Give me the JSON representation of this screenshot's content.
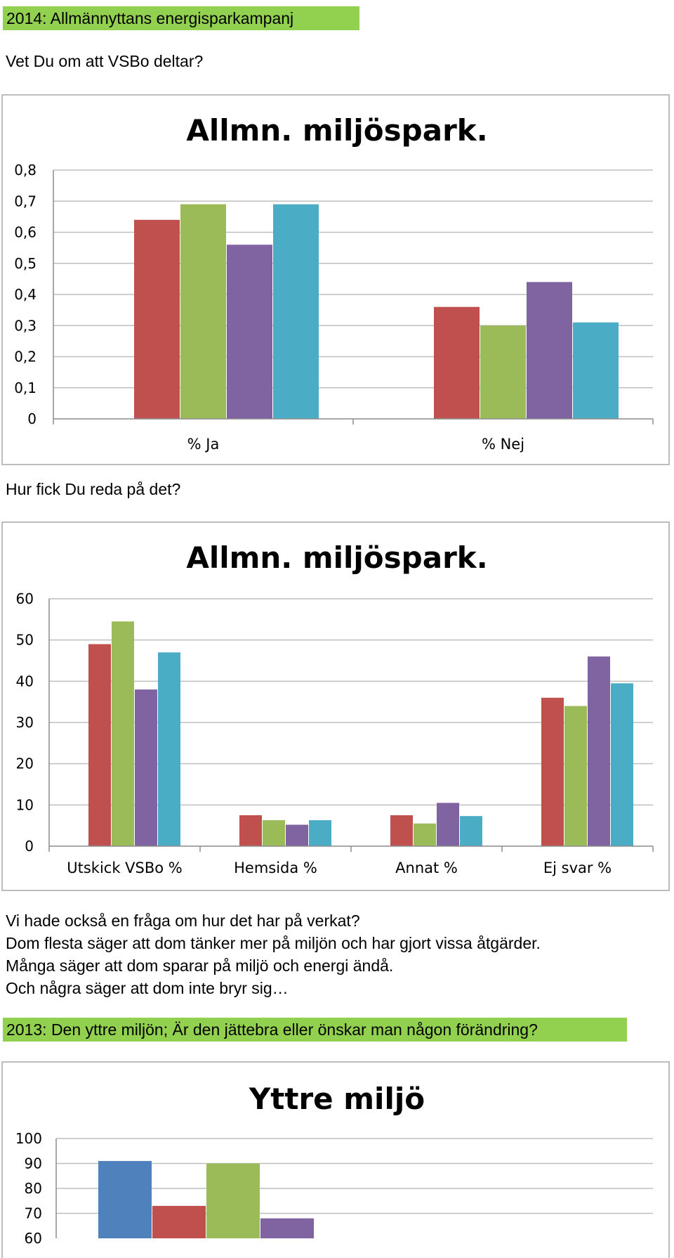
{
  "section1": {
    "heading": "2014: Allmännyttans energisparkampanj",
    "heading_color": "#92d050",
    "question1": "Vet Du om att VSBo deltar?",
    "question2": "Hur fick Du reda på det?"
  },
  "paragraph": {
    "lines": [
      "Vi hade också en fråga om hur det har på verkat?",
      "Dom flesta säger att dom tänker mer på miljön och har gjort vissa åtgärder.",
      "Många säger att dom sparar på miljö och energi ändå.",
      "Och några säger att dom inte bryr sig…"
    ]
  },
  "section2": {
    "heading": "2013: Den yttre miljön; Är den jättebra eller önskar man någon förändring?",
    "heading_color": "#92d050"
  },
  "chart_data": [
    {
      "type": "bar",
      "title": "Allmn. miljöspark.",
      "categories": [
        "% Ja",
        "% Nej"
      ],
      "ylim": [
        0,
        0.8
      ],
      "yticks": [
        "0",
        "0,1",
        "0,2",
        "0,3",
        "0,4",
        "0,5",
        "0,6",
        "0,7",
        "0,8"
      ],
      "grid": true,
      "series": [
        {
          "color": "#c0504d",
          "values": [
            0.64,
            0.36
          ]
        },
        {
          "color": "#9bbb59",
          "values": [
            0.69,
            0.3
          ]
        },
        {
          "color": "#8064a2",
          "values": [
            0.56,
            0.44
          ]
        },
        {
          "color": "#4bacc6",
          "values": [
            0.69,
            0.31
          ]
        }
      ]
    },
    {
      "type": "bar",
      "title": "Allmn. miljöspark.",
      "categories": [
        "Utskick VSBo %",
        "Hemsida %",
        "Annat %",
        "Ej svar %"
      ],
      "ylim": [
        0,
        60
      ],
      "yticks": [
        "0",
        "10",
        "20",
        "30",
        "40",
        "50",
        "60"
      ],
      "grid": true,
      "series": [
        {
          "color": "#c0504d",
          "values": [
            49,
            7.5,
            7.5,
            36
          ]
        },
        {
          "color": "#9bbb59",
          "values": [
            54.5,
            6.3,
            5.5,
            34
          ]
        },
        {
          "color": "#8064a2",
          "values": [
            38,
            5.2,
            10.5,
            46
          ]
        },
        {
          "color": "#4bacc6",
          "values": [
            47,
            6.3,
            7.3,
            39.5
          ]
        }
      ]
    },
    {
      "type": "bar",
      "title": "Yttre miljö",
      "categories": [
        ""
      ],
      "ylim": [
        60,
        100
      ],
      "yticks": [
        "60",
        "70",
        "80",
        "90",
        "100"
      ],
      "grid": true,
      "series": [
        {
          "color": "#4f81bd",
          "values": [
            91
          ]
        },
        {
          "color": "#c0504d",
          "values": [
            73
          ]
        },
        {
          "color": "#9bbb59",
          "values": [
            90
          ]
        },
        {
          "color": "#8064a2",
          "values": [
            68
          ]
        }
      ]
    }
  ]
}
